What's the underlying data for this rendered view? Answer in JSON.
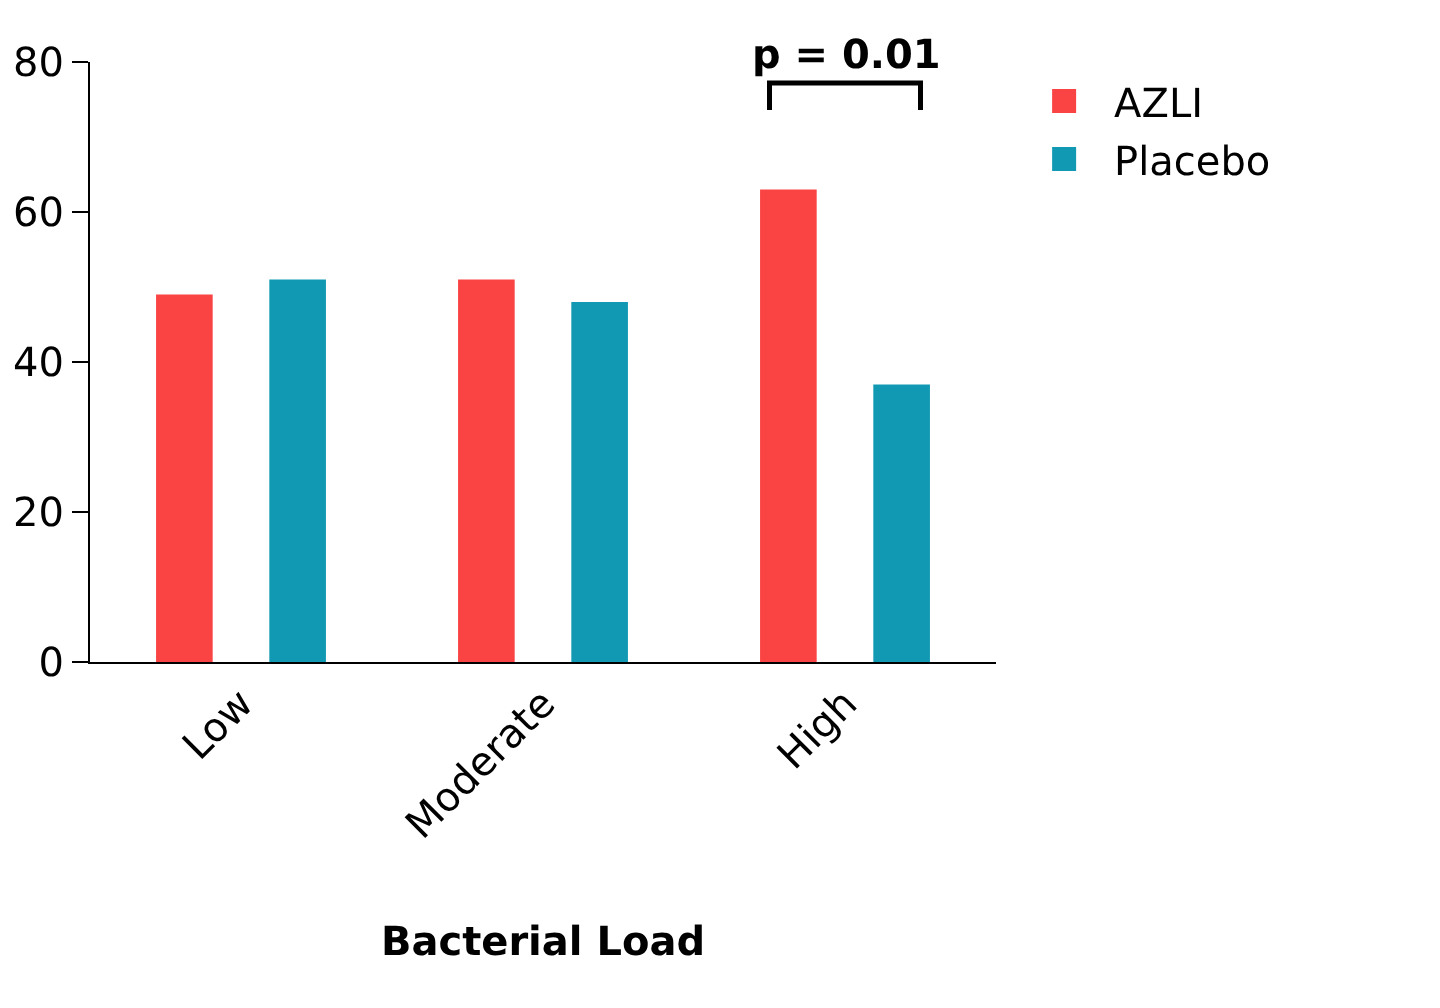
{
  "chart_data": {
    "type": "bar",
    "xlabel": "Bacterial Load",
    "categories": [
      "Low",
      "Moderate",
      "High"
    ],
    "series": [
      {
        "name": "AZLI",
        "color": "#fa4343",
        "values": [
          49,
          51,
          63
        ]
      },
      {
        "name": "Placebo",
        "color": "#1199b4",
        "values": [
          51,
          48,
          37
        ]
      }
    ],
    "ylim": [
      0,
      80
    ],
    "yticks": [
      0,
      20,
      40,
      60,
      80
    ],
    "grid": false,
    "legend": "top right",
    "annotations": [
      "p = 0.01"
    ]
  }
}
